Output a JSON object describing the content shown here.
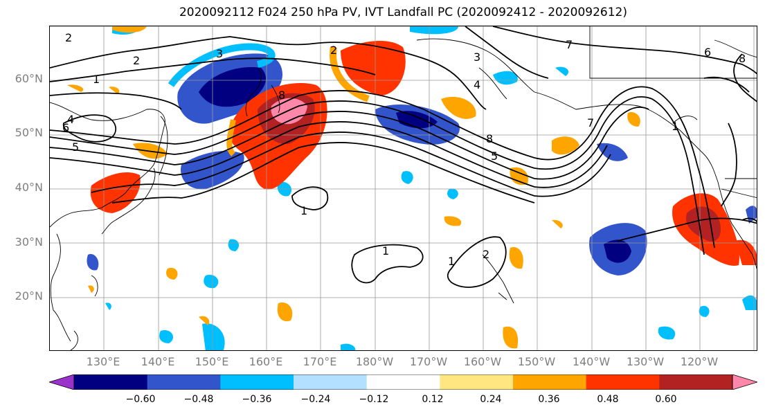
{
  "title": "2020092112 F024 250 hPa PV, IVT Landfall PC (2020092412 - 2020092612)",
  "map": {
    "projection": "cylindrical",
    "lon_range": [
      120,
      251
    ],
    "lat_range": [
      10,
      70
    ],
    "gridlines": true,
    "lat_labels": [
      "60°N",
      "50°N",
      "40°N",
      "30°N",
      "20°N"
    ],
    "lon_labels": [
      "130°E",
      "140°E",
      "150°E",
      "160°E",
      "170°E",
      "180°W",
      "170°W",
      "160°W",
      "150°W",
      "140°W",
      "130°W",
      "120°W"
    ],
    "contour_color": "#000000"
  },
  "colorbar": {
    "extend": "both",
    "colors": [
      "#9933cc",
      "#000080",
      "#3355cc",
      "#00bfff",
      "#b3e0ff",
      "#ffffff",
      "#ffe680",
      "#ffa500",
      "#ff3300",
      "#b22222",
      "#ff88aa"
    ],
    "tick_labels": [
      "−0.60",
      "−0.48",
      "−0.36",
      "−0.24",
      "−0.12",
      "0.12",
      "0.24",
      "0.36",
      "0.48",
      "0.60"
    ]
  },
  "contour_labels": [
    {
      "text": "2"
    },
    {
      "text": "3"
    },
    {
      "text": "7"
    },
    {
      "text": "2"
    },
    {
      "text": "1"
    },
    {
      "text": "4"
    },
    {
      "text": "6"
    },
    {
      "text": "5"
    },
    {
      "text": "3"
    },
    {
      "text": "2"
    },
    {
      "text": "8"
    },
    {
      "text": "4"
    },
    {
      "text": "1"
    },
    {
      "text": "8"
    },
    {
      "text": "5"
    },
    {
      "text": "7"
    },
    {
      "text": "6"
    },
    {
      "text": "8"
    },
    {
      "text": "1"
    },
    {
      "text": "1"
    },
    {
      "text": "1"
    },
    {
      "text": "2"
    }
  ]
}
